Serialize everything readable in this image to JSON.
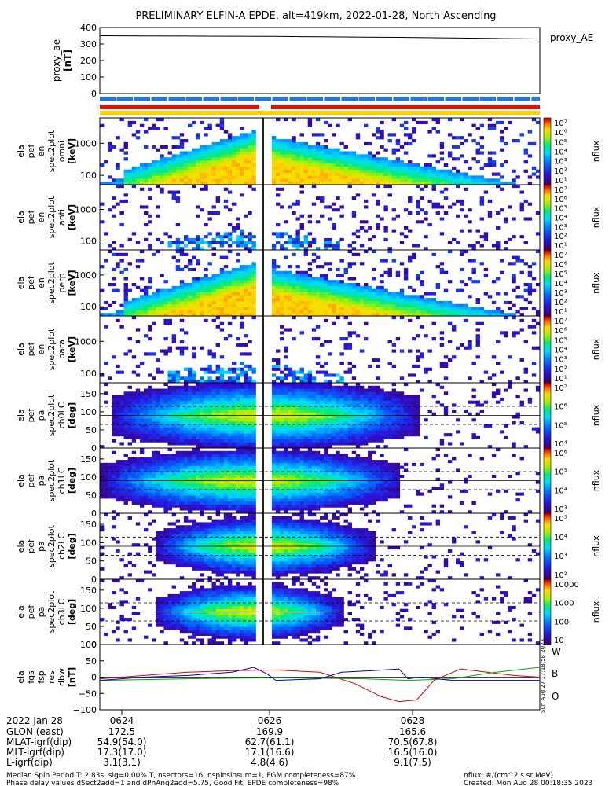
{
  "title": "PRELIMINARY ELFIN-A EPDE, alt=419km, 2022-01-28, North Ascending",
  "chart_data": [
    {
      "type": "line",
      "panel": "proxy_ae",
      "ylabel_lines": [
        "proxy_ae",
        "[nT]"
      ],
      "yticks": [
        "400",
        "300",
        "200",
        "100",
        "0"
      ],
      "ylim": [
        0,
        400
      ],
      "legend": "proxy_AE",
      "series": [
        {
          "x": [
            0,
            0.1,
            0.2,
            0.3,
            0.4,
            0.5,
            0.6,
            0.7,
            0.8,
            0.9,
            1.0
          ],
          "values": [
            350,
            349,
            348,
            347,
            346,
            344,
            342,
            340,
            337,
            334,
            331
          ]
        }
      ]
    },
    {
      "type": "heatmap",
      "ylabel_lines": [
        "ela",
        "pef",
        "en",
        "spec2plot",
        "omni",
        "[keV]"
      ],
      "yticks": [
        "1000",
        "100"
      ],
      "colorbar_ticks": [
        "10⁷",
        "10⁶",
        "10⁵",
        "10⁴",
        "10³",
        "10²",
        "10¹"
      ],
      "colorbar_label": "nflux",
      "variant": "omni"
    },
    {
      "type": "heatmap",
      "ylabel_lines": [
        "ela",
        "pef",
        "en",
        "spec2plot",
        "anti",
        "[keV]"
      ],
      "yticks": [
        "1000",
        "100"
      ],
      "colorbar_ticks": [
        "10⁷",
        "10⁶",
        "10⁵",
        "10⁴",
        "10³",
        "10²",
        "10¹"
      ],
      "colorbar_label": "nflux",
      "variant": "sparse"
    },
    {
      "type": "heatmap",
      "ylabel_lines": [
        "ela",
        "pef",
        "en",
        "spec2plot",
        "perp",
        "[keV]"
      ],
      "yticks": [
        "1000",
        "100"
      ],
      "colorbar_ticks": [
        "10⁷",
        "10⁶",
        "10⁵",
        "10⁴",
        "10³",
        "10²",
        "10¹"
      ],
      "colorbar_label": "nflux",
      "variant": "omni"
    },
    {
      "type": "heatmap",
      "ylabel_lines": [
        "ela",
        "pef",
        "en",
        "spec2plot",
        "para",
        "[keV]"
      ],
      "yticks": [
        "1000",
        "100"
      ],
      "colorbar_ticks": [
        "10⁷",
        "10⁶",
        "10⁵",
        "10⁴",
        "10³",
        "10²",
        "10¹"
      ],
      "colorbar_label": "nflux",
      "variant": "sparse"
    },
    {
      "type": "heatmap",
      "ylabel_lines": [
        "ela",
        "pef",
        "pa",
        "spec2plot",
        "ch0LC",
        "[deg]"
      ],
      "yticks": [
        "150",
        "100",
        "50",
        "0"
      ],
      "colorbar_ticks": [
        "10⁷",
        "10⁶",
        "10⁵",
        "10⁴"
      ],
      "colorbar_label": "nflux",
      "variant": "pa0"
    },
    {
      "type": "heatmap",
      "ylabel_lines": [
        "ela",
        "pef",
        "pa",
        "spec2plot",
        "ch1LC",
        "[deg]"
      ],
      "yticks": [
        "150",
        "100",
        "50",
        "0"
      ],
      "colorbar_ticks": [
        "10⁶",
        "10⁵",
        "10⁴",
        "10³"
      ],
      "colorbar_label": "nflux",
      "variant": "pa1"
    },
    {
      "type": "heatmap",
      "ylabel_lines": [
        "ela",
        "pef",
        "pa",
        "spec2plot",
        "ch2LC",
        "[deg]"
      ],
      "yticks": [
        "150",
        "100",
        "50",
        "0"
      ],
      "colorbar_ticks": [
        "10⁵",
        "10⁴",
        "10³",
        "10²"
      ],
      "colorbar_label": "nflux",
      "variant": "pa2"
    },
    {
      "type": "heatmap",
      "ylabel_lines": [
        "ela",
        "pef",
        "pa",
        "spec2plot",
        "ch3LC",
        "[deg]"
      ],
      "yticks": [
        "150",
        "100",
        "50",
        "0"
      ],
      "colorbar_ticks": [
        "10000",
        "1000",
        "100",
        "10"
      ],
      "colorbar_label": "nflux",
      "variant": "pa3"
    },
    {
      "type": "line",
      "panel": "fgs",
      "ylabel_lines": [
        "ela",
        "fgs",
        "fsp",
        "res",
        "dbw",
        "[nT]"
      ],
      "yticks": [
        "100",
        "50",
        "0",
        "−50",
        "−100"
      ],
      "ylim": [
        -100,
        100
      ],
      "series": [
        {
          "name": "W",
          "color": "#dd0000",
          "x": [
            0,
            0.1,
            0.2,
            0.3,
            0.4,
            0.5,
            0.58,
            0.64,
            0.68,
            0.72,
            0.76,
            0.82,
            0.88,
            0.94,
            1.0
          ],
          "values": [
            -5,
            5,
            15,
            20,
            22,
            15,
            -20,
            -60,
            -75,
            -70,
            -10,
            25,
            15,
            5,
            0
          ]
        },
        {
          "name": "B",
          "color": "#00aa00",
          "x": [
            0,
            0.2,
            0.4,
            0.6,
            0.7,
            0.8,
            0.9,
            1.0
          ],
          "values": [
            -10,
            -5,
            -2,
            -5,
            -10,
            -5,
            15,
            30
          ]
        },
        {
          "name": "O",
          "color": "#0000cc",
          "x": [
            0,
            0.1,
            0.2,
            0.3,
            0.35,
            0.38,
            0.4,
            0.5,
            0.55,
            0.62,
            0.68,
            0.7,
            0.73,
            0.8,
            1.0
          ],
          "values": [
            -10,
            0,
            5,
            15,
            30,
            10,
            -10,
            -5,
            15,
            20,
            25,
            -5,
            0,
            -10,
            -10
          ]
        }
      ]
    }
  ],
  "side_label": "Sun Aug 27 17:18:58 2023",
  "footer": {
    "row_labels": [
      "2022 Jan 28",
      "GLON (east)",
      "MLAT-igrf(dip)",
      "MLT-igrf(dip)",
      "L-igrf(dip)"
    ],
    "col1": [
      "0624",
      "172.5",
      "54.9(54.0)",
      "17.3(17.0)",
      "3.1(3.1)"
    ],
    "col2": [
      "0626",
      "169.9",
      "62.7(61.1)",
      "17.1(16.6)",
      "4.8(4.6)"
    ],
    "col3": [
      "0628",
      "165.6",
      "70.5(67.8)",
      "16.5(16.0)",
      "9.1(7.5)"
    ],
    "note1": "Median Spin Period T: 2.83s, sig=0.00% T, nsectors=16, nspinsinsum=1, FGM completeness=87%",
    "note2": "Phase delay values dSect2add=1 and dPhAng2add=5.75, Good Fit, EPDE completeness=98%",
    "units": "nflux: #/(cm^2 s sr MeV)",
    "created": "Created: Mon Aug 28 00:18:35 2023"
  }
}
